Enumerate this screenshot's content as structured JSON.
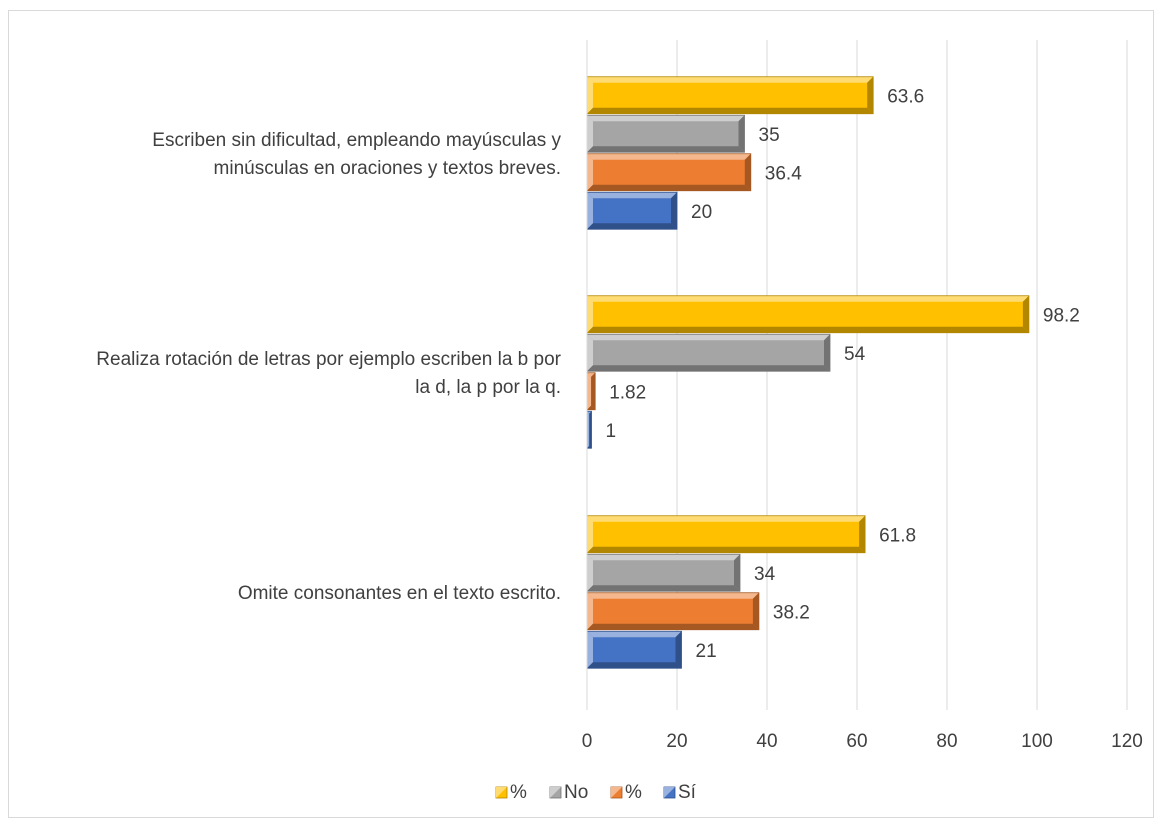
{
  "chart_data": {
    "type": "bar",
    "orientation": "horizontal",
    "title": "",
    "xlabel": "",
    "ylabel": "",
    "xlim": [
      0,
      120
    ],
    "x_ticks": [
      "0",
      "20",
      "40",
      "60",
      "80",
      "100",
      "120"
    ],
    "grid": "vertical major gridlines",
    "legend_position": "bottom",
    "categories": [
      [
        "Escriben sin dificultad, empleando mayúsculas y",
        "minúsculas en oraciones y textos breves."
      ],
      [
        "Realiza rotación de letras por ejemplo escriben la b por",
        "la d, la p por la q."
      ],
      [
        "Omite consonantes en el texto escrito."
      ]
    ],
    "series": [
      {
        "name": "%",
        "color": "#ffc000",
        "values": [
          63.6,
          98.2,
          61.8
        ],
        "labels": [
          "63.6",
          "98.2",
          "61.8"
        ]
      },
      {
        "name": "No",
        "color": "#a5a5a5",
        "values": [
          35,
          54,
          34
        ],
        "labels": [
          "35",
          "54",
          "34"
        ]
      },
      {
        "name": "%",
        "color": "#ed7d31",
        "values": [
          36.4,
          1.82,
          38.2
        ],
        "labels": [
          "36.4",
          "1.82",
          "38.2"
        ]
      },
      {
        "name": "Sí",
        "color": "#4472c4",
        "values": [
          20,
          1,
          21
        ],
        "labels": [
          "20",
          "1",
          "21"
        ]
      }
    ],
    "legend_order": [
      "%",
      "No",
      "%",
      "Sí"
    ]
  }
}
